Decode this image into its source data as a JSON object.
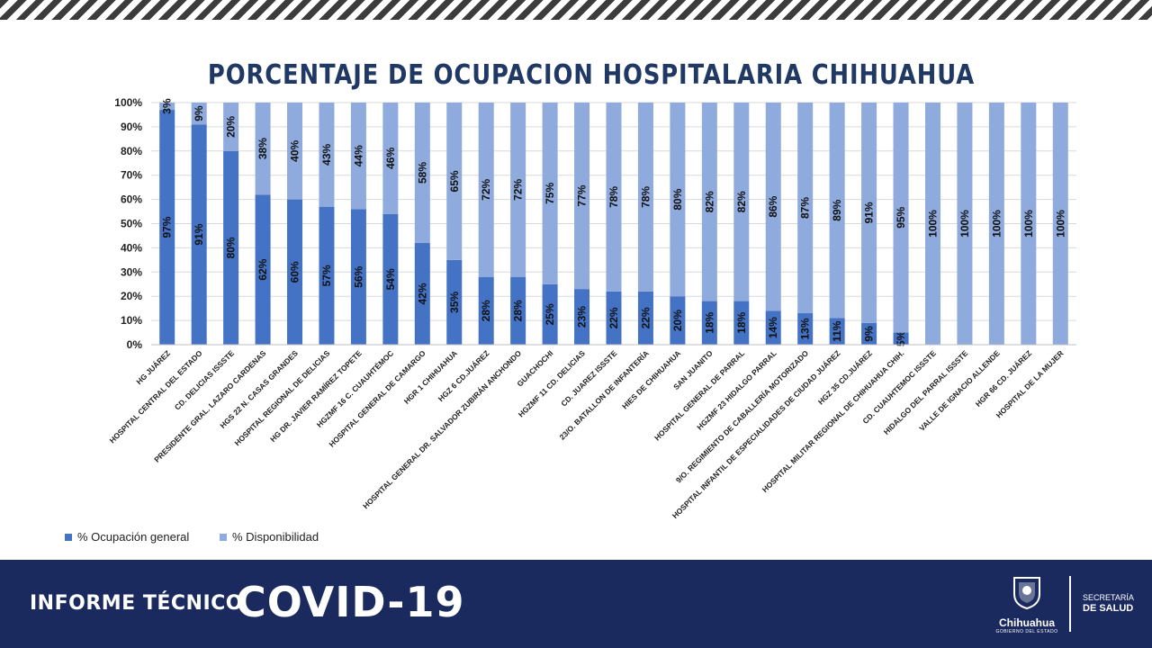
{
  "footer": {
    "label": "INFORME TÉCNICO",
    "covid": "COVID-19",
    "logo_name": "Chihuahua",
    "logo_sub": "GOBIERNO DEL ESTADO",
    "dept_line1": "SECRETARÍA",
    "dept_line2": "DE SALUD"
  },
  "colors": {
    "ocupacion": "#4472c4",
    "disponibilidad": "#8faadc",
    "title": "#1f3864",
    "footer_bg": "#1b2a5e"
  },
  "chart_data": {
    "type": "bar",
    "stacked": true,
    "title": "PORCENTAJE DE OCUPACION HOSPITALARIA CHIHUAHUA",
    "ylim": [
      0,
      100
    ],
    "yticks": [
      "0%",
      "10%",
      "20%",
      "30%",
      "40%",
      "50%",
      "60%",
      "70%",
      "80%",
      "90%",
      "100%"
    ],
    "grid": true,
    "legend_position": "bottom-left",
    "categories": [
      "HG JUÁREZ",
      "HOSPITAL CENTRAL DEL ESTADO",
      "CD. DELICIAS ISSSTE",
      "PRESIDENTE GRAL. LAZARO CARDENAS",
      "HGS 22 N. CASAS GRANDES",
      "HOSPITAL REGIONAL DE DELICIAS",
      "HG DR. JAVIER RAMÍREZ TOPETE",
      "HGZMF 16 C. CUAUHTÉMOC",
      "HOSPITAL GENERAL DE CAMARGO",
      "HGR 1 CHIHUAHUA",
      "HGZ 6 CD.JUÁREZ",
      "HOSPITAL GENERAL DR. SALVADOR ZUBIRÁN ANCHONDO",
      "GUACHOCHI",
      "HGZMF 11 CD. DELICIAS",
      "CD. JUAREZ ISSSTE",
      "23/O. BATALLON DE INFANTERÍA",
      "HIES DE CHIHUAHUA",
      "SAN JUANITO",
      "HOSPITAL GENERAL DE PARRAL",
      "HGZMF 23 HIDALGO PARRAL",
      "9/O. REGIMIENTO DE CABALLERÍA MOTORIZADO",
      "HOSPITAL INFANTIL DE ESPECIALIDADES DE CIUDAD JUÁREZ",
      "HGZ 35 CD.JUÁREZ",
      "HOSPITAL MILITAR REGIONAL DE CHIHUAHUA CHIH.",
      "CD. CUAUHTEMOC ISSSTE",
      "HIDALGO DEL PARRAL ISSSTE",
      "VALLE DE IGNACIO ALLENDE",
      "HGR 66 CD. JUÁREZ",
      "HOSPITAL DE LA MUJER"
    ],
    "series": [
      {
        "name": "% Ocupación general",
        "values": [
          97,
          91,
          80,
          62,
          60,
          57,
          56,
          54,
          42,
          35,
          28,
          28,
          25,
          23,
          22,
          22,
          20,
          18,
          18,
          14,
          13,
          11,
          9,
          5,
          0,
          0,
          0,
          0,
          0
        ],
        "labels": [
          "97%",
          "91%",
          "80%",
          "62%",
          "60%",
          "57%",
          "56%",
          "54%",
          "42%",
          "35%",
          "28%",
          "28%",
          "25%",
          "23%",
          "22%",
          "22%",
          "20%",
          "18%",
          "18%",
          "14%",
          "13%",
          "11%",
          "9%",
          "5%",
          "",
          "",
          "",
          "",
          ""
        ]
      },
      {
        "name": "% Disponibilidad",
        "values": [
          3,
          9,
          20,
          38,
          40,
          43,
          44,
          46,
          58,
          65,
          72,
          72,
          75,
          77,
          78,
          78,
          80,
          82,
          82,
          86,
          87,
          89,
          91,
          95,
          100,
          100,
          100,
          100,
          100
        ],
        "labels": [
          "3%",
          "9%",
          "20%",
          "38%",
          "40%",
          "43%",
          "44%",
          "46%",
          "58%",
          "65%",
          "72%",
          "72%",
          "75%",
          "77%",
          "78%",
          "78%",
          "80%",
          "82%",
          "82%",
          "86%",
          "87%",
          "89%",
          "91%",
          "95%",
          "100%",
          "100%",
          "100%",
          "100%",
          "100%"
        ]
      }
    ]
  }
}
